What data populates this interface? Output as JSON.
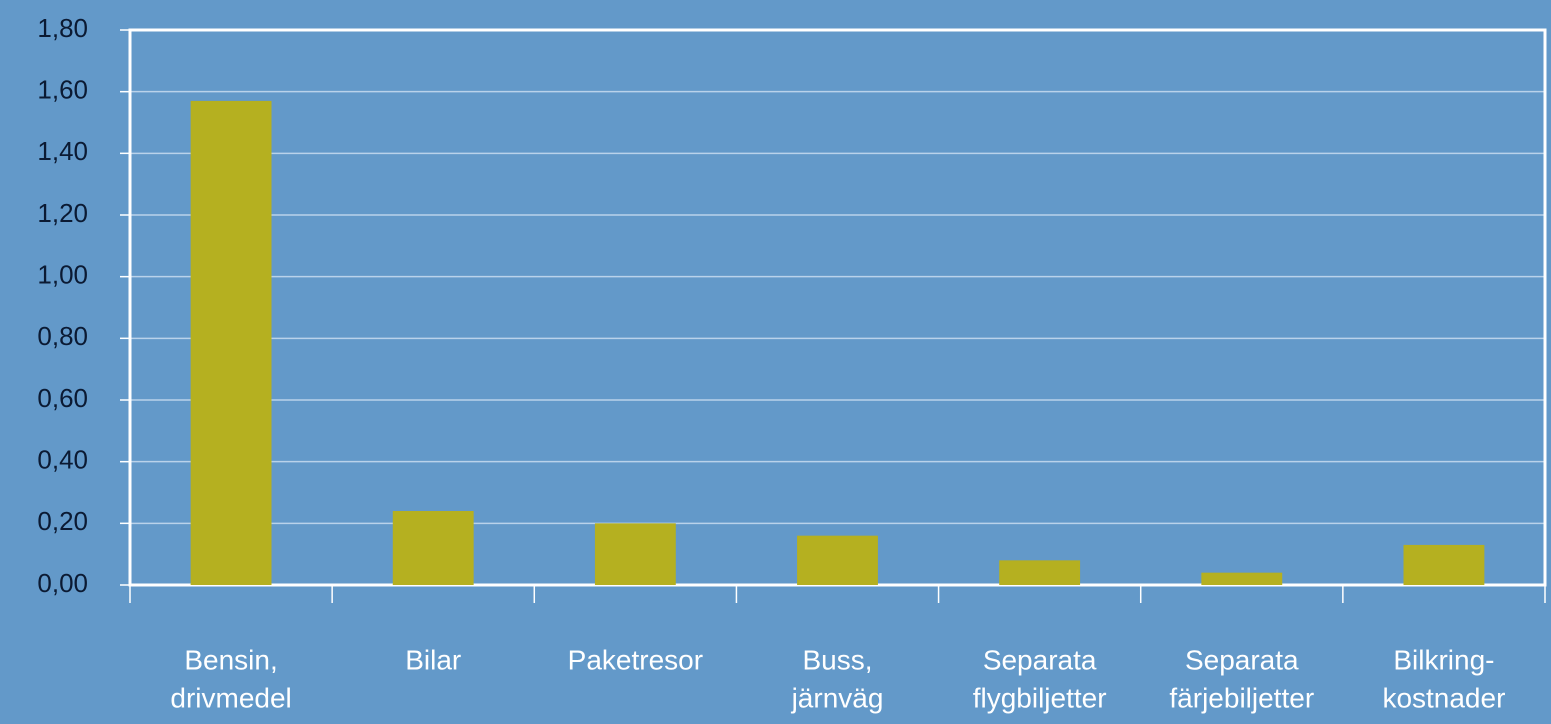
{
  "chart_data": {
    "type": "bar",
    "categories": [
      [
        "Bensin,",
        "drivmedel"
      ],
      [
        "Bilar"
      ],
      [
        "Paketresor"
      ],
      [
        "Buss,",
        "järnväg"
      ],
      [
        "Separata",
        "flygbiljetter"
      ],
      [
        "Separata",
        "färjebiljetter"
      ],
      [
        "Bilkring-",
        "kostnader"
      ]
    ],
    "values": [
      1.57,
      0.24,
      0.2,
      0.16,
      0.08,
      0.04,
      0.13
    ],
    "color": "#b5b020",
    "ylim": [
      0,
      1.8
    ],
    "yticks": [
      {
        "value": 0,
        "label": "0,00"
      },
      {
        "value": 0.2,
        "label": "0,20"
      },
      {
        "value": 0.4,
        "label": "0,40"
      },
      {
        "value": 0.6,
        "label": "0,60"
      },
      {
        "value": 0.8,
        "label": "0,80"
      },
      {
        "value": 1.0,
        "label": "1,00"
      },
      {
        "value": 1.2,
        "label": "1,20"
      },
      {
        "value": 1.4,
        "label": "1,40"
      },
      {
        "value": 1.6,
        "label": "1,60"
      },
      {
        "value": 1.8,
        "label": "1,80"
      }
    ],
    "grid": true
  }
}
